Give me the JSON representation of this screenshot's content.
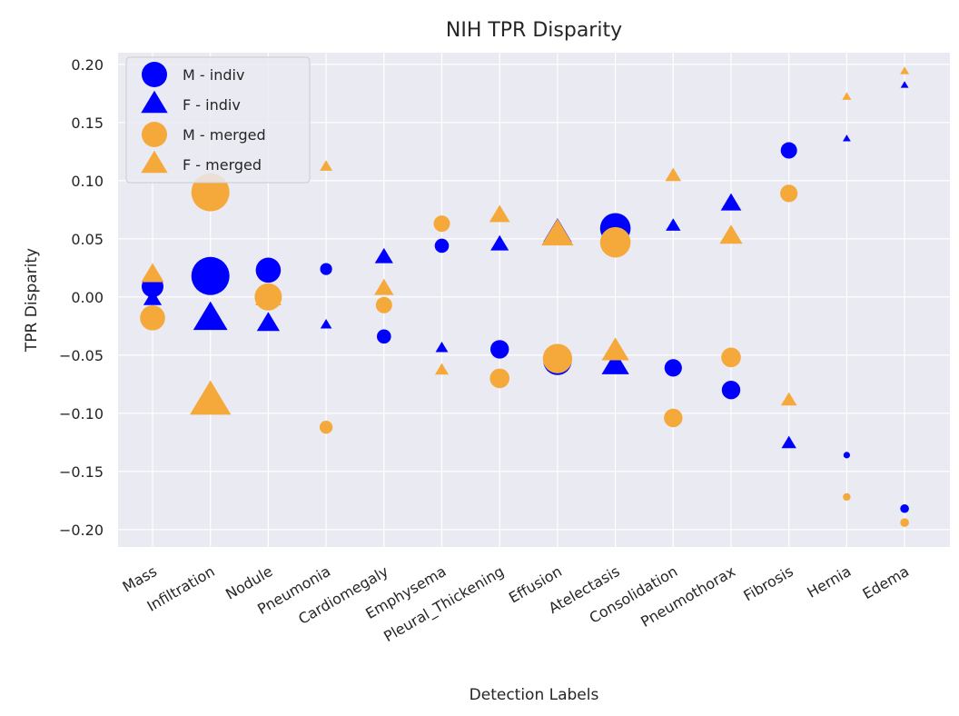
{
  "chart_data": {
    "type": "scatter",
    "title": "NIH TPR Disparity",
    "xlabel": "Detection Labels",
    "ylabel": "TPR Disparity",
    "ylim": [
      -0.215,
      0.21
    ],
    "yticks": [
      -0.2,
      -0.15,
      -0.1,
      -0.05,
      0.0,
      0.05,
      0.1,
      0.15,
      0.2
    ],
    "ytick_labels": [
      "−0.20",
      "−0.15",
      "−0.10",
      "−0.05",
      "0.00",
      "0.05",
      "0.10",
      "0.15",
      "0.20"
    ],
    "grid": true,
    "legend_position": "upper-left",
    "background_color": "#eaeaf2",
    "grid_color": "#ffffff",
    "categories": [
      "Mass",
      "Infiltration",
      "Nodule",
      "Pneumonia",
      "Cardiomegaly",
      "Emphysema",
      "Pleural_Thickening",
      "Effusion",
      "Atelectasis",
      "Consolidation",
      "Pneumothorax",
      "Fibrosis",
      "Hernia",
      "Edema"
    ],
    "series": [
      {
        "name": "M - indiv",
        "marker": "circle",
        "color": "#0000ff",
        "values": [
          0.009,
          0.018,
          0.023,
          0.024,
          -0.034,
          0.044,
          -0.045,
          -0.055,
          0.059,
          -0.061,
          -0.08,
          0.126,
          -0.136,
          -0.182
        ],
        "sizes": [
          2.0,
          3.5,
          2.3,
          1.1,
          1.3,
          1.3,
          1.7,
          2.6,
          2.8,
          1.6,
          1.7,
          1.5,
          0.6,
          0.8
        ]
      },
      {
        "name": "F - indiv",
        "marker": "triangle",
        "color": "#0000ff",
        "values": [
          -0.002,
          -0.019,
          -0.023,
          -0.024,
          0.034,
          -0.044,
          0.045,
          0.055,
          -0.059,
          0.061,
          0.08,
          -0.126,
          0.136,
          0.182
        ],
        "sizes": [
          1.6,
          3.0,
          2.0,
          1.0,
          1.6,
          1.1,
          1.6,
          2.5,
          2.4,
          1.3,
          1.8,
          1.3,
          0.7,
          0.7
        ]
      },
      {
        "name": "M - merged",
        "marker": "circle",
        "color": "#f5a93a",
        "values": [
          -0.018,
          0.09,
          0.0,
          -0.112,
          -0.007,
          0.063,
          -0.07,
          -0.053,
          0.047,
          -0.104,
          -0.052,
          0.089,
          -0.172,
          -0.194
        ],
        "sizes": [
          2.3,
          3.5,
          2.5,
          1.2,
          1.5,
          1.5,
          1.8,
          2.7,
          2.8,
          1.7,
          1.8,
          1.6,
          0.7,
          0.8
        ]
      },
      {
        "name": "F - merged",
        "marker": "triangle",
        "color": "#f5a93a",
        "values": [
          0.019,
          -0.09,
          0.0,
          0.112,
          0.007,
          -0.063,
          0.07,
          0.053,
          -0.047,
          0.104,
          0.052,
          -0.089,
          0.172,
          0.194
        ],
        "sizes": [
          2.0,
          3.6,
          2.3,
          1.1,
          1.7,
          1.2,
          1.8,
          2.8,
          2.4,
          1.4,
          2.0,
          1.4,
          0.8,
          0.8
        ]
      }
    ]
  }
}
